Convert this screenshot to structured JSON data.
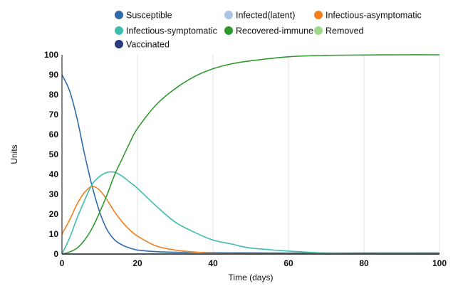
{
  "chart_data": {
    "type": "line",
    "xlabel": "Time (days)",
    "ylabel": "Units",
    "xlim": [
      0,
      100
    ],
    "ylim": [
      0,
      100
    ],
    "x_ticks": [
      0,
      20,
      40,
      60,
      80,
      100
    ],
    "y_ticks": [
      0,
      10,
      20,
      30,
      40,
      50,
      60,
      70,
      80,
      90,
      100
    ],
    "grid": "vertical",
    "legend_position": "top",
    "x": [
      0,
      2,
      4,
      6,
      8,
      10,
      12,
      14,
      16,
      18,
      20,
      25,
      30,
      35,
      40,
      45,
      50,
      60,
      70,
      80,
      90,
      100
    ],
    "series": [
      {
        "name": "Susceptible",
        "color": "#2f6aa8",
        "values": [
          90,
          82,
          68,
          50,
          34,
          21,
          12,
          7,
          4.5,
          3,
          2,
          1.2,
          0.9,
          0.8,
          0.7,
          0.6,
          0.6,
          0.5,
          0.5,
          0.5,
          0.5,
          0.5
        ]
      },
      {
        "name": "Infected(latent)",
        "color": "#a9c4e6",
        "values": [
          0,
          0,
          0,
          0,
          0,
          0,
          0,
          0,
          0,
          0,
          0,
          0,
          0,
          0,
          0,
          0,
          0,
          0,
          0,
          0,
          0,
          0
        ]
      },
      {
        "name": "Infectious-asymptomatic",
        "color": "#f07f1e",
        "values": [
          10,
          17,
          25,
          31,
          34,
          32,
          27,
          21,
          16,
          12,
          9,
          4,
          2,
          1,
          0.5,
          0.3,
          0.2,
          0.1,
          0,
          0,
          0,
          0
        ]
      },
      {
        "name": "Infectious-symptomatic",
        "color": "#3ebdaf",
        "values": [
          0,
          8,
          18,
          27,
          35,
          39,
          41,
          41,
          39,
          36,
          33,
          24,
          16,
          11,
          7,
          5,
          3,
          1.5,
          0.5,
          0.2,
          0.1,
          0
        ]
      },
      {
        "name": "Recovered-immune",
        "color": "#2e9a2e",
        "values": [
          0,
          1,
          3,
          7,
          13,
          21,
          30,
          40,
          48,
          56,
          63,
          75,
          83,
          89,
          93,
          95.5,
          97,
          99,
          99.7,
          99.9,
          100,
          100
        ]
      },
      {
        "name": "Removed",
        "color": "#9ed98a",
        "values": [
          0,
          0,
          0,
          0,
          0,
          0,
          0,
          0,
          0,
          0,
          0,
          0,
          0,
          0,
          0,
          0,
          0,
          0,
          0,
          0,
          0,
          0
        ]
      },
      {
        "name": "Vaccinated",
        "color": "#283a7a",
        "values": [
          0,
          0,
          0,
          0,
          0,
          0,
          0,
          0,
          0,
          0,
          0,
          0,
          0,
          0,
          0,
          0,
          0,
          0,
          0,
          0,
          0,
          0
        ]
      }
    ]
  }
}
